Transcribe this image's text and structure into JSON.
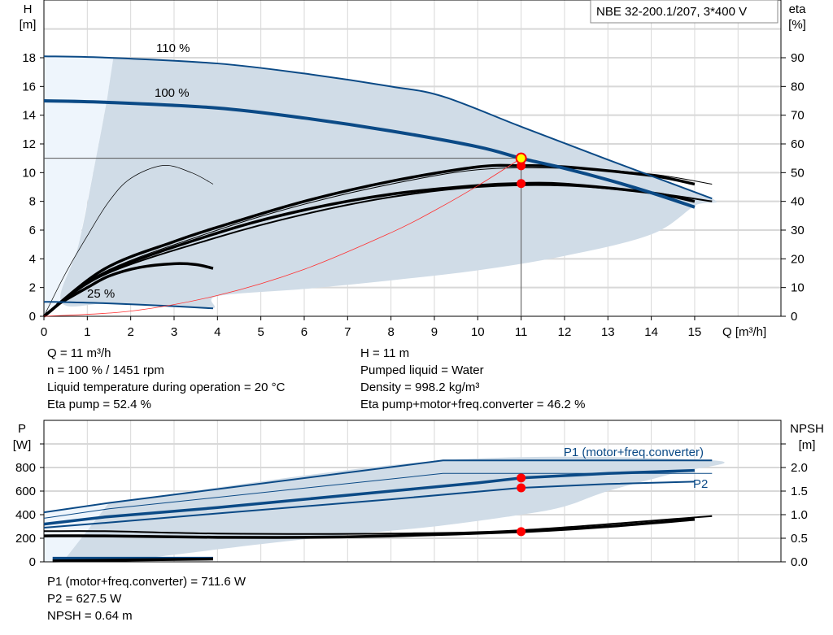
{
  "title_box": "NBE 32-200.1/207, 3*400 V",
  "colors": {
    "curve_blue": "#0b4a86",
    "shade": "#d0dce7",
    "shade_light": "#eef5fc",
    "system_red": "#ff3030",
    "point_red": "#ff0000",
    "point_yellow": "#ffff00",
    "grid": "#d8d8d8"
  },
  "chart_data": [
    {
      "type": "line",
      "xlabel": "Q [m³/h]",
      "ylabel": "H\n[m]",
      "ylabel_lines": [
        "H",
        "[m]"
      ],
      "y2label_lines": [
        "eta",
        "[%]"
      ],
      "xlim": [
        0,
        17
      ],
      "ylim": [
        0,
        22
      ],
      "y2lim": [
        0,
        110
      ],
      "xticks": [
        0,
        1,
        2,
        3,
        4,
        5,
        6,
        7,
        8,
        9,
        10,
        11,
        12,
        13,
        14,
        15
      ],
      "yticks": [
        0,
        2,
        4,
        6,
        8,
        10,
        12,
        14,
        16,
        18
      ],
      "y2ticks": [
        0,
        10,
        20,
        30,
        40,
        50,
        60,
        70,
        80,
        90
      ],
      "grid": true,
      "curve_labels": [
        "110 %",
        "100 %",
        "25 %"
      ],
      "head_curves": [
        {
          "speed": "110 %",
          "points": [
            [
              0,
              18.1
            ],
            [
              1.5,
              18
            ],
            [
              4,
              17.6
            ],
            [
              6,
              16.9
            ],
            [
              8,
              16
            ],
            [
              9.2,
              15.3
            ],
            [
              11,
              13.2
            ],
            [
              13,
              10.9
            ],
            [
              15.4,
              8.2
            ]
          ]
        },
        {
          "speed": "100 %",
          "points": [
            [
              0,
              15
            ],
            [
              1.4,
              14.9
            ],
            [
              4,
              14.5
            ],
            [
              6,
              13.8
            ],
            [
              8,
              12.9
            ],
            [
              10,
              11.8
            ],
            [
              11,
              11
            ],
            [
              12,
              10.3
            ],
            [
              13,
              9.5
            ],
            [
              14,
              8.6
            ],
            [
              15,
              7.6
            ]
          ]
        },
        {
          "speed": "25 %",
          "points": [
            [
              0,
              1
            ],
            [
              0.3,
              1
            ],
            [
              1.5,
              0.9
            ],
            [
              3,
              0.7
            ],
            [
              3.9,
              0.55
            ]
          ]
        }
      ],
      "eta_curves": [
        {
          "points": [
            [
              0,
              0
            ],
            [
              1.4,
              16.5
            ],
            [
              3,
              26
            ],
            [
              4,
              31
            ],
            [
              6,
              40
            ],
            [
              8,
              47
            ],
            [
              10,
              52
            ],
            [
              11,
              52.4
            ],
            [
              12,
              52
            ],
            [
              14,
              49
            ],
            [
              15,
              46
            ]
          ],
          "weight": "thick"
        },
        {
          "points": [
            [
              0,
              0
            ],
            [
              1.4,
              15.5
            ],
            [
              4,
              30
            ],
            [
              6,
              39
            ],
            [
              8,
              46
            ],
            [
              10,
              51
            ],
            [
              12,
              51.5
            ],
            [
              14,
              49.5
            ],
            [
              15.4,
              46
            ]
          ],
          "weight": "thin"
        },
        {
          "points": [
            [
              0,
              0
            ],
            [
              1.4,
              15
            ],
            [
              4,
              29
            ],
            [
              6,
              37
            ],
            [
              8,
              42.5
            ],
            [
              10,
              45.5
            ],
            [
              11,
              46.2
            ],
            [
              12,
              46
            ],
            [
              14,
              43
            ],
            [
              15,
              40
            ]
          ],
          "weight": "thick"
        },
        {
          "points": [
            [
              0,
              0
            ],
            [
              1.4,
              14.5
            ],
            [
              4,
              27.5
            ],
            [
              6,
              35.5
            ],
            [
              8,
              41.5
            ],
            [
              10,
              45
            ],
            [
              12,
              45.5
            ],
            [
              14,
              43
            ],
            [
              15.4,
              40
            ]
          ],
          "weight": "medium"
        },
        {
          "points": [
            [
              0,
              0
            ],
            [
              0.5,
              15
            ],
            [
              1,
              28
            ],
            [
              1.5,
              40
            ],
            [
              2,
              48
            ],
            [
              2.75,
              52.5
            ],
            [
              3.4,
              50
            ],
            [
              3.9,
              46
            ]
          ],
          "weight": "hair"
        },
        {
          "points": [
            [
              0.3,
              4
            ],
            [
              1,
              10
            ],
            [
              1.5,
              14
            ],
            [
              2.2,
              17
            ],
            [
              3,
              18.3
            ],
            [
              3.5,
              18
            ],
            [
              3.9,
              16.7
            ]
          ],
          "weight": "thick"
        }
      ],
      "system_curve": {
        "points": [
          [
            0,
            0
          ],
          [
            2,
            0.36
          ],
          [
            4,
            1.45
          ],
          [
            6,
            3.27
          ],
          [
            8,
            5.82
          ],
          [
            9,
            7.36
          ],
          [
            10,
            9.09
          ],
          [
            11,
            11
          ]
        ]
      },
      "duty_point": {
        "Q": 11,
        "H": 11,
        "eta_pump": 52.4,
        "eta_total": 46.2
      },
      "shaded_region": [
        [
          1.6,
          18
        ],
        [
          4,
          17.6
        ],
        [
          6,
          16.9
        ],
        [
          8,
          16
        ],
        [
          9.2,
          15.3
        ],
        [
          11,
          13.2
        ],
        [
          13,
          10.9
        ],
        [
          15.4,
          8.2
        ],
        [
          15,
          7.7
        ],
        [
          14,
          5.7
        ],
        [
          12,
          4.2
        ],
        [
          10,
          3.2
        ],
        [
          8,
          2.5
        ],
        [
          6,
          1.9
        ],
        [
          4,
          1.4
        ],
        [
          3.9,
          0.55
        ],
        [
          3,
          0.7
        ],
        [
          1.5,
          0.9
        ],
        [
          0.4,
          1
        ],
        [
          0.8,
          5
        ],
        [
          1.2,
          11
        ],
        [
          1.45,
          15
        ]
      ],
      "light_region": [
        [
          0,
          0
        ],
        [
          0,
          18.1
        ],
        [
          1.6,
          18
        ],
        [
          1.45,
          15
        ],
        [
          1.2,
          11
        ],
        [
          0.8,
          5
        ],
        [
          0.4,
          1
        ]
      ]
    },
    {
      "type": "line",
      "ylabel_lines": [
        "P",
        "[W]"
      ],
      "y2label_lines": [
        "NPSH",
        "[m]"
      ],
      "xlim": [
        0,
        17
      ],
      "ylim": [
        0,
        1200
      ],
      "y2lim": [
        0,
        3
      ],
      "yticks": [
        0,
        200,
        400,
        600,
        800
      ],
      "y2ticks": [
        "0.0",
        "0.5",
        "1.0",
        "1.5",
        "2.0"
      ],
      "grid": true,
      "curve_labels": [
        "P1 (motor+freq.converter)",
        "P2"
      ],
      "power_curves": [
        {
          "name": "P1 110 %",
          "points": [
            [
              0,
              420
            ],
            [
              1.5,
              500
            ],
            [
              9.2,
              860
            ],
            [
              15.4,
              860
            ]
          ],
          "weight": "medium"
        },
        {
          "name": "P2 110 %",
          "points": [
            [
              0,
              370
            ],
            [
              1.5,
              450
            ],
            [
              9.2,
              750
            ],
            [
              15.4,
              750
            ]
          ],
          "weight": "thin"
        },
        {
          "name": "P1 100 %",
          "points": [
            [
              0,
              320
            ],
            [
              1.4,
              380
            ],
            [
              4,
              460
            ],
            [
              6,
              530
            ],
            [
              8,
              600
            ],
            [
              10,
              670
            ],
            [
              11,
              711.6
            ],
            [
              13,
              750
            ],
            [
              15,
              775
            ]
          ],
          "weight": "thick"
        },
        {
          "name": "P2 100 %",
          "points": [
            [
              0,
              290
            ],
            [
              1.4,
              330
            ],
            [
              4,
              410
            ],
            [
              8,
              530
            ],
            [
              11,
              627.5
            ],
            [
              13,
              660
            ],
            [
              15,
              680
            ]
          ],
          "weight": "medium"
        },
        {
          "name": "P 25 %",
          "points": [
            [
              0.2,
              30
            ],
            [
              3.9,
              30
            ]
          ],
          "weight": "thick"
        }
      ],
      "npsh_curves": [
        {
          "points": [
            [
              0,
              0.55
            ],
            [
              1.4,
              0.55
            ],
            [
              4,
              0.52
            ],
            [
              6,
              0.52
            ],
            [
              8,
              0.55
            ],
            [
              11,
              0.64
            ],
            [
              13,
              0.75
            ],
            [
              15,
              0.9
            ]
          ],
          "weight": "thick"
        },
        {
          "points": [
            [
              0,
              0.65
            ],
            [
              1.4,
              0.65
            ],
            [
              4,
              0.6
            ],
            [
              8,
              0.6
            ],
            [
              11,
              0.67
            ],
            [
              15.4,
              0.97
            ]
          ],
          "weight": "medium"
        },
        {
          "points": [
            [
              0.2,
              0.02
            ],
            [
              3.9,
              0.06
            ]
          ],
          "weight": "thick"
        }
      ],
      "duty_point": {
        "Q": 11,
        "P1": 711.6,
        "P2": 627.5,
        "NPSH": 0.64
      },
      "shaded_region": [
        [
          1.5,
          500
        ],
        [
          9.2,
          860
        ],
        [
          15.4,
          860
        ],
        [
          14.5,
          750
        ],
        [
          13,
          600
        ],
        [
          12,
          470
        ],
        [
          11,
          400
        ],
        [
          9,
          300
        ],
        [
          7,
          230
        ],
        [
          5,
          150
        ],
        [
          3,
          60
        ],
        [
          2,
          15
        ],
        [
          1.4,
          0
        ],
        [
          0.5,
          0
        ],
        [
          0.5,
          30
        ]
      ],
      "light_region": [
        [
          0,
          0
        ],
        [
          0,
          420
        ],
        [
          1.5,
          500
        ],
        [
          1.3,
          300
        ],
        [
          1,
          100
        ],
        [
          0.5,
          30
        ],
        [
          0.5,
          0
        ]
      ]
    }
  ],
  "info_top": {
    "left": [
      "Q = 11 m³/h",
      "n = 100 % / 1451 rpm",
      "Liquid temperature during operation = 20 °C",
      "Eta pump = 52.4 %"
    ],
    "right": [
      "H = 11 m",
      "Pumped liquid = Water",
      "Density = 998.2 kg/m³",
      "Eta pump+motor+freq.converter = 46.2 %"
    ]
  },
  "info_bottom": [
    "P1 (motor+freq.converter) = 711.6 W",
    "P2 = 627.5 W",
    "NPSH = 0.64 m"
  ]
}
